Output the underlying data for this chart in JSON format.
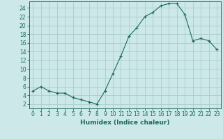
{
  "x": [
    0,
    1,
    2,
    3,
    4,
    5,
    6,
    7,
    8,
    9,
    10,
    11,
    12,
    13,
    14,
    15,
    16,
    17,
    18,
    19,
    20,
    21,
    22,
    23
  ],
  "y": [
    5,
    6,
    5,
    4.5,
    4.5,
    3.5,
    3,
    2.5,
    2,
    5,
    9,
    13,
    17.5,
    19.5,
    22,
    23,
    24.5,
    25,
    25,
    22.5,
    16.5,
    17,
    16.5,
    14.5
  ],
  "line_color": "#1a6b5a",
  "marker": "+",
  "bg_color": "#cce8e8",
  "grid_color": "#aacccc",
  "xlabel": "Humidex (Indice chaleur)",
  "xlim": [
    -0.5,
    23.5
  ],
  "ylim": [
    1,
    25.5
  ],
  "yticks": [
    2,
    4,
    6,
    8,
    10,
    12,
    14,
    16,
    18,
    20,
    22,
    24
  ],
  "xticks": [
    0,
    1,
    2,
    3,
    4,
    5,
    6,
    7,
    8,
    9,
    10,
    11,
    12,
    13,
    14,
    15,
    16,
    17,
    18,
    19,
    20,
    21,
    22,
    23
  ],
  "tick_color": "#1a6b5a",
  "label_color": "#1a6b5a",
  "axis_color": "#1a6b5a",
  "tick_fontsize": 5.5,
  "xlabel_fontsize": 6.5
}
